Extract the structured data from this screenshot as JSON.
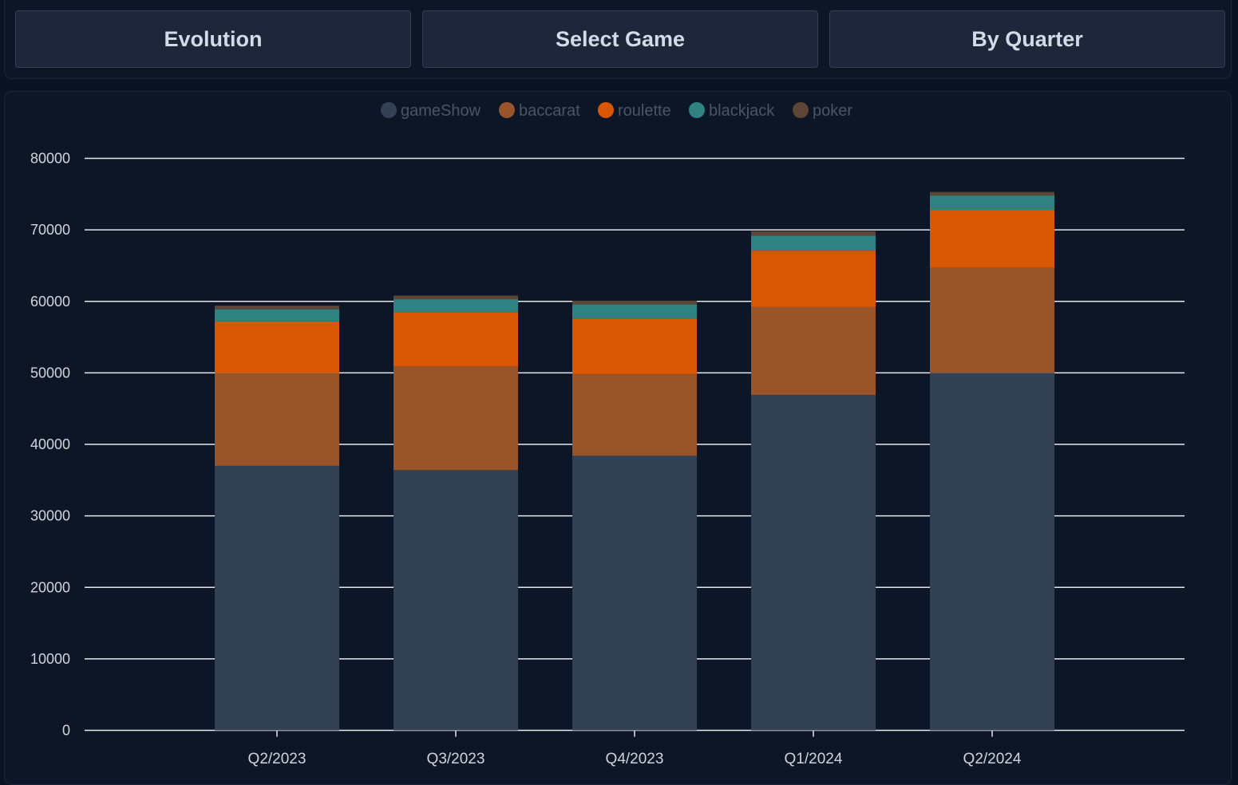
{
  "toolbar": {
    "evolution_label": "Evolution",
    "select_game_label": "Select Game",
    "by_quarter_label": "By Quarter"
  },
  "colors": {
    "background": "#0b1322",
    "gameShow": "#334155",
    "baccarat": "#9a542a",
    "roulette": "#d95602",
    "blackjack": "#2f8182",
    "poker": "#5e4535",
    "grid": "#e5e7eb",
    "legend_text": "#4b5563",
    "axis_text": "#d1d5db"
  },
  "chart_data": {
    "type": "bar",
    "stacked": true,
    "categories": [
      "Q2/2023",
      "Q3/2023",
      "Q4/2023",
      "Q1/2024",
      "Q2/2024"
    ],
    "series": [
      {
        "name": "gameShow",
        "values": [
          37000,
          36400,
          38400,
          46900,
          50000
        ]
      },
      {
        "name": "baccarat",
        "values": [
          13000,
          14500,
          11400,
          12300,
          14700
        ]
      },
      {
        "name": "roulette",
        "values": [
          7200,
          7600,
          7800,
          7900,
          8100
        ]
      },
      {
        "name": "blackjack",
        "values": [
          1700,
          1800,
          2000,
          2100,
          2000
        ]
      },
      {
        "name": "poker",
        "values": [
          500,
          500,
          500,
          600,
          500
        ]
      }
    ],
    "yticks": [
      "0",
      "10000",
      "20000",
      "30000",
      "40000",
      "50000",
      "60000",
      "70000",
      "80000"
    ],
    "ylim": [
      0,
      80000
    ],
    "grid": true,
    "legend": "top-center"
  }
}
